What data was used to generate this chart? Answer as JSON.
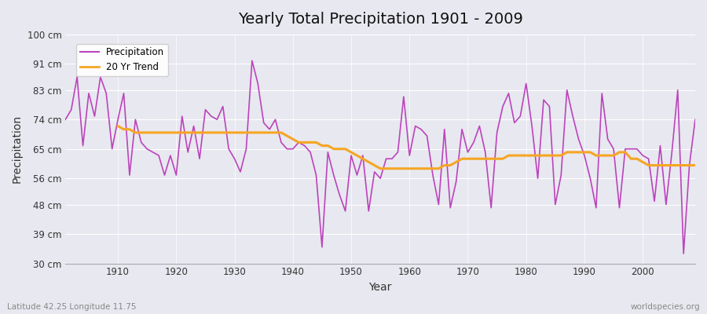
{
  "title": "Yearly Total Precipitation 1901 - 2009",
  "xlabel": "Year",
  "ylabel": "Precipitation",
  "subtitle_left": "Latitude 42.25 Longitude 11.75",
  "subtitle_right": "worldspecies.org",
  "ylim": [
    30,
    100
  ],
  "yticks": [
    30,
    39,
    48,
    56,
    65,
    74,
    83,
    91,
    100
  ],
  "ytick_labels": [
    "30 cm",
    "39 cm",
    "48 cm",
    "56 cm",
    "65 cm",
    "74 cm",
    "83 cm",
    "91 cm",
    "100 cm"
  ],
  "bg_color": "#e8e8f0",
  "plot_bg_color": "#e8e8f0",
  "precip_color": "#bb44bb",
  "trend_color": "#f5a623",
  "legend_entries": [
    "Precipitation",
    "20 Yr Trend"
  ],
  "years": [
    1901,
    1902,
    1903,
    1904,
    1905,
    1906,
    1907,
    1908,
    1909,
    1910,
    1911,
    1912,
    1913,
    1914,
    1915,
    1916,
    1917,
    1918,
    1919,
    1920,
    1921,
    1922,
    1923,
    1924,
    1925,
    1926,
    1927,
    1928,
    1929,
    1930,
    1931,
    1932,
    1933,
    1934,
    1935,
    1936,
    1937,
    1938,
    1939,
    1940,
    1941,
    1942,
    1943,
    1944,
    1945,
    1946,
    1947,
    1948,
    1949,
    1950,
    1951,
    1952,
    1953,
    1954,
    1955,
    1956,
    1957,
    1958,
    1959,
    1960,
    1961,
    1962,
    1963,
    1964,
    1965,
    1966,
    1967,
    1968,
    1969,
    1970,
    1971,
    1972,
    1973,
    1974,
    1975,
    1976,
    1977,
    1978,
    1979,
    1980,
    1981,
    1982,
    1983,
    1984,
    1985,
    1986,
    1987,
    1988,
    1989,
    1990,
    1991,
    1992,
    1993,
    1994,
    1995,
    1996,
    1997,
    1998,
    1999,
    2000,
    2001,
    2002,
    2003,
    2004,
    2005,
    2006,
    2007,
    2008,
    2009
  ],
  "precip": [
    74,
    77,
    87,
    66,
    82,
    75,
    87,
    82,
    65,
    74,
    82,
    57,
    74,
    67,
    65,
    64,
    63,
    57,
    63,
    57,
    75,
    64,
    72,
    62,
    77,
    75,
    74,
    78,
    65,
    62,
    58,
    65,
    92,
    85,
    73,
    71,
    74,
    67,
    65,
    65,
    67,
    66,
    64,
    57,
    35,
    64,
    57,
    51,
    46,
    63,
    57,
    63,
    46,
    58,
    56,
    62,
    62,
    64,
    81,
    63,
    72,
    71,
    69,
    57,
    48,
    71,
    47,
    55,
    71,
    64,
    67,
    72,
    64,
    47,
    70,
    78,
    82,
    73,
    75,
    85,
    72,
    56,
    80,
    78,
    48,
    57,
    83,
    75,
    68,
    63,
    56,
    47,
    82,
    68,
    65,
    47,
    65,
    65,
    65,
    63,
    62,
    49,
    66,
    48,
    64,
    83,
    33,
    60,
    74
  ],
  "trend_years": [
    1910,
    1911,
    1912,
    1913,
    1914,
    1915,
    1916,
    1917,
    1918,
    1919,
    1920,
    1921,
    1922,
    1923,
    1924,
    1925,
    1926,
    1927,
    1928,
    1929,
    1930,
    1931,
    1932,
    1933,
    1934,
    1935,
    1936,
    1937,
    1938,
    1939,
    1940,
    1941,
    1942,
    1943,
    1944,
    1945,
    1946,
    1947,
    1948,
    1949,
    1950,
    1951,
    1952,
    1953,
    1954,
    1955,
    1956,
    1957,
    1958,
    1959,
    1960,
    1961,
    1962,
    1963,
    1964,
    1965,
    1966,
    1967,
    1968,
    1969,
    1970,
    1971,
    1972,
    1973,
    1974,
    1975,
    1976,
    1977,
    1978,
    1979,
    1980,
    1981,
    1982,
    1983,
    1984,
    1985,
    1986,
    1987,
    1988,
    1989,
    1990,
    1991,
    1992,
    1993,
    1994,
    1995,
    1996,
    1997,
    1998,
    1999,
    2000,
    2001,
    2002,
    2003,
    2004,
    2005,
    2006,
    2007,
    2008,
    2009
  ],
  "trend": [
    72,
    71,
    71,
    70,
    70,
    70,
    70,
    70,
    70,
    70,
    70,
    70,
    70,
    70,
    70,
    70,
    70,
    70,
    70,
    70,
    70,
    70,
    70,
    70,
    70,
    70,
    70,
    70,
    70,
    69,
    68,
    67,
    67,
    67,
    67,
    66,
    66,
    65,
    65,
    65,
    64,
    63,
    62,
    61,
    60,
    59,
    59,
    59,
    59,
    59,
    59,
    59,
    59,
    59,
    59,
    59,
    60,
    60,
    61,
    62,
    62,
    62,
    62,
    62,
    62,
    62,
    62,
    63,
    63,
    63,
    63,
    63,
    63,
    63,
    63,
    63,
    63,
    64,
    64,
    64,
    64,
    64,
    63,
    63,
    63,
    63,
    64,
    64,
    62,
    62,
    61,
    60,
    60,
    60,
    60,
    60,
    60,
    60,
    60,
    60
  ]
}
